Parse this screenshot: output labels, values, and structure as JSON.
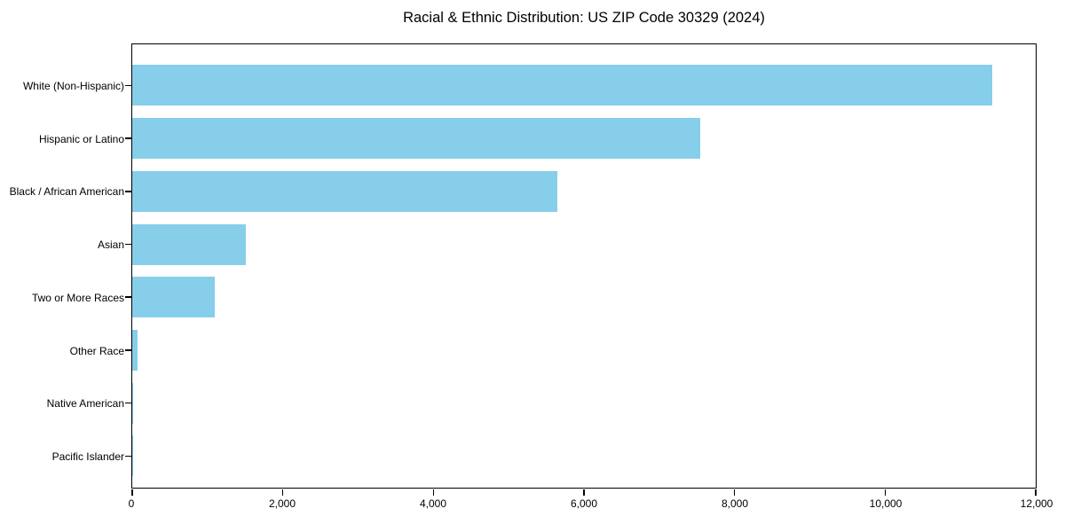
{
  "figure": {
    "background_color": "#ffffff",
    "text_color": "#000000"
  },
  "chart_data": {
    "type": "bar",
    "orientation": "horizontal",
    "title": "Racial & Ethnic Distribution: US ZIP Code 30329 (2024)",
    "xlabel": "",
    "ylabel": "",
    "categories": [
      "White (Non-Hispanic)",
      "Hispanic or Latino",
      "Black / African American",
      "Asian",
      "Two or More Races",
      "Other Race",
      "Native American",
      "Pacific Islander"
    ],
    "values": [
      11425,
      7550,
      5650,
      1505,
      1100,
      70,
      15,
      5
    ],
    "xlim": [
      0,
      12000
    ],
    "x_ticks": [
      0,
      2000,
      4000,
      6000,
      8000,
      10000,
      12000
    ],
    "x_tick_labels": [
      "0",
      "2,000",
      "4,000",
      "6,000",
      "8,000",
      "10,000",
      "12,000"
    ],
    "bar_color": "#87CEEB",
    "grid": false,
    "legend_position": "none"
  }
}
